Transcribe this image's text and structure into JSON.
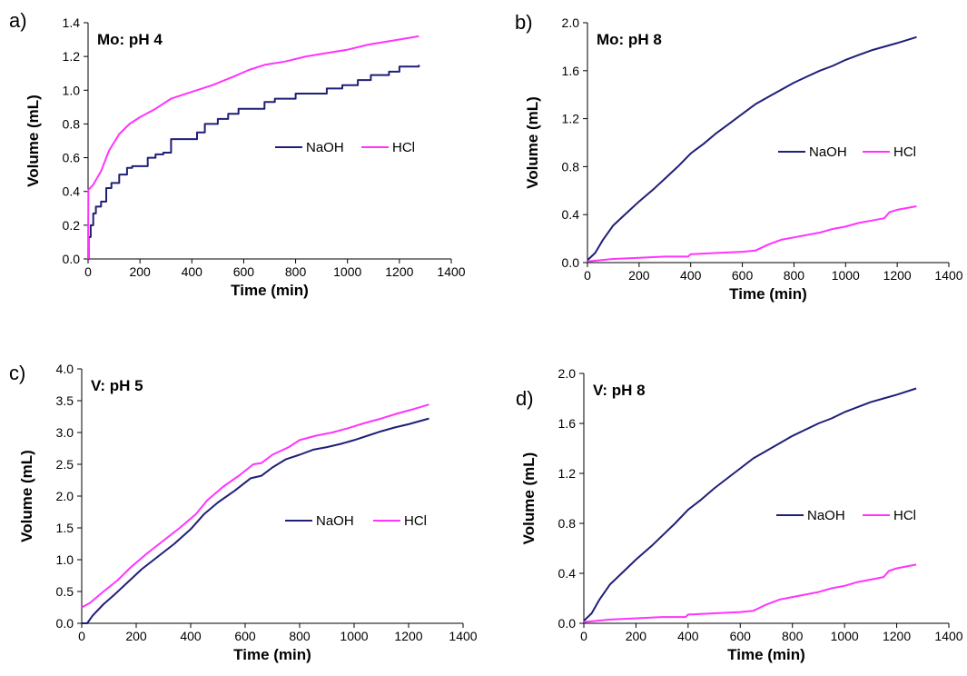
{
  "colors": {
    "NaOH": "#1f1f78",
    "HCl": "#ff33ff"
  },
  "chart_data": [
    {
      "panel_label": "a)",
      "type": "line",
      "title": "Mo: pH 4",
      "xlabel": "Time (min)",
      "ylabel": "Volume (mL)",
      "xlim": [
        0,
        1400
      ],
      "ylim": [
        0,
        1.4
      ],
      "xticks": [
        "0",
        "200",
        "400",
        "600",
        "800",
        "1000",
        "1200",
        "1400"
      ],
      "yticks": [
        "0.0",
        "0.2",
        "0.4",
        "0.6",
        "0.8",
        "1.0",
        "1.2",
        "1.4"
      ],
      "grid": false,
      "legend": "center-right",
      "series": [
        {
          "name": "NaOH",
          "color": "#1f1f78",
          "step": true,
          "points": [
            [
              0,
              0.0
            ],
            [
              2,
              0.13
            ],
            [
              10,
              0.2
            ],
            [
              20,
              0.27
            ],
            [
              30,
              0.31
            ],
            [
              50,
              0.34
            ],
            [
              70,
              0.42
            ],
            [
              90,
              0.45
            ],
            [
              120,
              0.5
            ],
            [
              150,
              0.54
            ],
            [
              170,
              0.55
            ],
            [
              200,
              0.55
            ],
            [
              230,
              0.6
            ],
            [
              260,
              0.62
            ],
            [
              290,
              0.63
            ],
            [
              320,
              0.71
            ],
            [
              390,
              0.71
            ],
            [
              420,
              0.75
            ],
            [
              450,
              0.8
            ],
            [
              500,
              0.83
            ],
            [
              540,
              0.86
            ],
            [
              580,
              0.89
            ],
            [
              650,
              0.89
            ],
            [
              680,
              0.93
            ],
            [
              720,
              0.95
            ],
            [
              800,
              0.98
            ],
            [
              880,
              0.98
            ],
            [
              920,
              1.01
            ],
            [
              980,
              1.03
            ],
            [
              1040,
              1.06
            ],
            [
              1090,
              1.09
            ],
            [
              1160,
              1.11
            ],
            [
              1200,
              1.14
            ],
            [
              1275,
              1.15
            ]
          ]
        },
        {
          "name": "HCl",
          "color": "#ff33ff",
          "step": false,
          "points": [
            [
              0,
              0.0
            ],
            [
              1,
              0.41
            ],
            [
              20,
              0.44
            ],
            [
              50,
              0.52
            ],
            [
              80,
              0.64
            ],
            [
              120,
              0.74
            ],
            [
              160,
              0.8
            ],
            [
              200,
              0.84
            ],
            [
              260,
              0.89
            ],
            [
              320,
              0.95
            ],
            [
              400,
              0.99
            ],
            [
              480,
              1.03
            ],
            [
              560,
              1.08
            ],
            [
              620,
              1.12
            ],
            [
              680,
              1.15
            ],
            [
              760,
              1.17
            ],
            [
              840,
              1.2
            ],
            [
              920,
              1.22
            ],
            [
              1000,
              1.24
            ],
            [
              1080,
              1.27
            ],
            [
              1160,
              1.29
            ],
            [
              1275,
              1.32
            ]
          ]
        }
      ]
    },
    {
      "panel_label": "b)",
      "type": "line",
      "title": "Mo: pH 8",
      "xlabel": "Time (min)",
      "ylabel": "Volume (mL)",
      "xlim": [
        0,
        1400
      ],
      "ylim": [
        0,
        2.0
      ],
      "xticks": [
        "0",
        "200",
        "400",
        "600",
        "800",
        "1000",
        "1200",
        "1400"
      ],
      "yticks": [
        "0.0",
        "0.4",
        "0.8",
        "1.2",
        "1.6",
        "2.0"
      ],
      "grid": false,
      "legend": "center-right",
      "series": [
        {
          "name": "NaOH",
          "color": "#1f1f78",
          "step": false,
          "points": [
            [
              0,
              0.02
            ],
            [
              30,
              0.08
            ],
            [
              60,
              0.19
            ],
            [
              100,
              0.31
            ],
            [
              150,
              0.41
            ],
            [
              200,
              0.51
            ],
            [
              260,
              0.62
            ],
            [
              300,
              0.7
            ],
            [
              350,
              0.8
            ],
            [
              400,
              0.91
            ],
            [
              450,
              0.99
            ],
            [
              500,
              1.08
            ],
            [
              550,
              1.16
            ],
            [
              600,
              1.24
            ],
            [
              650,
              1.32
            ],
            [
              700,
              1.38
            ],
            [
              750,
              1.44
            ],
            [
              800,
              1.5
            ],
            [
              850,
              1.55
            ],
            [
              900,
              1.6
            ],
            [
              950,
              1.64
            ],
            [
              1000,
              1.69
            ],
            [
              1050,
              1.73
            ],
            [
              1100,
              1.77
            ],
            [
              1150,
              1.8
            ],
            [
              1200,
              1.83
            ],
            [
              1275,
              1.88
            ]
          ]
        },
        {
          "name": "HCl",
          "color": "#ff33ff",
          "step": false,
          "points": [
            [
              0,
              0.01
            ],
            [
              100,
              0.03
            ],
            [
              200,
              0.04
            ],
            [
              300,
              0.05
            ],
            [
              390,
              0.05
            ],
            [
              400,
              0.07
            ],
            [
              500,
              0.08
            ],
            [
              600,
              0.09
            ],
            [
              650,
              0.1
            ],
            [
              670,
              0.12
            ],
            [
              700,
              0.15
            ],
            [
              750,
              0.19
            ],
            [
              800,
              0.21
            ],
            [
              850,
              0.23
            ],
            [
              900,
              0.25
            ],
            [
              950,
              0.28
            ],
            [
              1000,
              0.3
            ],
            [
              1050,
              0.33
            ],
            [
              1100,
              0.35
            ],
            [
              1150,
              0.37
            ],
            [
              1170,
              0.42
            ],
            [
              1200,
              0.44
            ],
            [
              1275,
              0.47
            ]
          ]
        }
      ]
    },
    {
      "panel_label": "c)",
      "type": "line",
      "title": "V: pH 5",
      "xlabel": "Time (min)",
      "ylabel": "Volume (mL)",
      "xlim": [
        0,
        1400
      ],
      "ylim": [
        0,
        4.0
      ],
      "xticks": [
        "0",
        "200",
        "400",
        "600",
        "800",
        "1000",
        "1200",
        "1400"
      ],
      "yticks": [
        "0.0",
        "0.5",
        "1.0",
        "1.5",
        "2.0",
        "2.5",
        "3.0",
        "3.5",
        "4.0"
      ],
      "grid": false,
      "legend": "center-right",
      "series": [
        {
          "name": "NaOH",
          "color": "#1f1f78",
          "step": false,
          "points": [
            [
              0,
              0.0
            ],
            [
              20,
              0.0
            ],
            [
              40,
              0.12
            ],
            [
              80,
              0.3
            ],
            [
              120,
              0.45
            ],
            [
              170,
              0.65
            ],
            [
              220,
              0.85
            ],
            [
              280,
              1.05
            ],
            [
              340,
              1.25
            ],
            [
              400,
              1.48
            ],
            [
              450,
              1.72
            ],
            [
              500,
              1.9
            ],
            [
              560,
              2.08
            ],
            [
              620,
              2.28
            ],
            [
              660,
              2.32
            ],
            [
              700,
              2.45
            ],
            [
              750,
              2.58
            ],
            [
              800,
              2.65
            ],
            [
              850,
              2.73
            ],
            [
              900,
              2.77
            ],
            [
              950,
              2.82
            ],
            [
              1000,
              2.88
            ],
            [
              1050,
              2.95
            ],
            [
              1100,
              3.02
            ],
            [
              1150,
              3.08
            ],
            [
              1200,
              3.13
            ],
            [
              1275,
              3.22
            ]
          ]
        },
        {
          "name": "HCl",
          "color": "#ff33ff",
          "step": false,
          "points": [
            [
              0,
              0.25
            ],
            [
              30,
              0.32
            ],
            [
              80,
              0.5
            ],
            [
              130,
              0.67
            ],
            [
              180,
              0.88
            ],
            [
              240,
              1.1
            ],
            [
              300,
              1.3
            ],
            [
              360,
              1.5
            ],
            [
              420,
              1.72
            ],
            [
              460,
              1.93
            ],
            [
              520,
              2.15
            ],
            [
              580,
              2.33
            ],
            [
              630,
              2.5
            ],
            [
              660,
              2.52
            ],
            [
              700,
              2.65
            ],
            [
              760,
              2.77
            ],
            [
              800,
              2.88
            ],
            [
              860,
              2.95
            ],
            [
              920,
              3.0
            ],
            [
              980,
              3.07
            ],
            [
              1040,
              3.15
            ],
            [
              1100,
              3.22
            ],
            [
              1160,
              3.3
            ],
            [
              1220,
              3.37
            ],
            [
              1275,
              3.44
            ]
          ]
        }
      ]
    },
    {
      "panel_label": "d)",
      "type": "line",
      "title": "V: pH 8",
      "xlabel": "Time (min)",
      "ylabel": "Volume (mL)",
      "xlim": [
        0,
        1400
      ],
      "ylim": [
        0,
        2.0
      ],
      "xticks": [
        "0",
        "200",
        "400",
        "600",
        "800",
        "1000",
        "1200",
        "1400"
      ],
      "yticks": [
        "0.0",
        "0.4",
        "0.8",
        "1.2",
        "1.6",
        "2.0"
      ],
      "grid": false,
      "legend": "center-right",
      "series": [
        {
          "name": "NaOH",
          "color": "#1f1f78",
          "step": false,
          "points": [
            [
              0,
              0.02
            ],
            [
              30,
              0.08
            ],
            [
              60,
              0.19
            ],
            [
              100,
              0.31
            ],
            [
              150,
              0.41
            ],
            [
              200,
              0.51
            ],
            [
              260,
              0.62
            ],
            [
              300,
              0.7
            ],
            [
              350,
              0.8
            ],
            [
              400,
              0.91
            ],
            [
              450,
              0.99
            ],
            [
              500,
              1.08
            ],
            [
              550,
              1.16
            ],
            [
              600,
              1.24
            ],
            [
              650,
              1.32
            ],
            [
              700,
              1.38
            ],
            [
              750,
              1.44
            ],
            [
              800,
              1.5
            ],
            [
              850,
              1.55
            ],
            [
              900,
              1.6
            ],
            [
              950,
              1.64
            ],
            [
              1000,
              1.69
            ],
            [
              1050,
              1.73
            ],
            [
              1100,
              1.77
            ],
            [
              1150,
              1.8
            ],
            [
              1200,
              1.83
            ],
            [
              1275,
              1.88
            ]
          ]
        },
        {
          "name": "HCl",
          "color": "#ff33ff",
          "step": false,
          "points": [
            [
              0,
              0.01
            ],
            [
              100,
              0.03
            ],
            [
              200,
              0.04
            ],
            [
              300,
              0.05
            ],
            [
              390,
              0.05
            ],
            [
              400,
              0.07
            ],
            [
              500,
              0.08
            ],
            [
              600,
              0.09
            ],
            [
              650,
              0.1
            ],
            [
              670,
              0.12
            ],
            [
              700,
              0.15
            ],
            [
              750,
              0.19
            ],
            [
              800,
              0.21
            ],
            [
              850,
              0.23
            ],
            [
              900,
              0.25
            ],
            [
              950,
              0.28
            ],
            [
              1000,
              0.3
            ],
            [
              1050,
              0.33
            ],
            [
              1100,
              0.35
            ],
            [
              1150,
              0.37
            ],
            [
              1170,
              0.42
            ],
            [
              1200,
              0.44
            ],
            [
              1275,
              0.47
            ]
          ]
        }
      ]
    }
  ]
}
